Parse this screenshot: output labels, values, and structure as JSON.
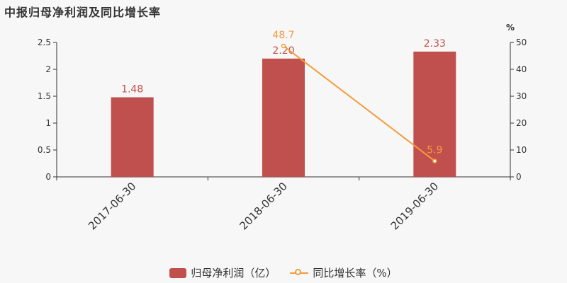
{
  "title": "中报归母净利润及同比增长率",
  "colors": {
    "bar": "#c0504d",
    "line": "#f39c3c",
    "axis": "#333333",
    "text": "#333333"
  },
  "chart_data": {
    "type": "bar",
    "categories": [
      "2017-06-30",
      "2018-06-30",
      "2019-06-30"
    ],
    "series": [
      {
        "name": "归母净利润（亿）",
        "type": "bar",
        "axis": "left",
        "values": [
          1.48,
          2.2,
          2.33
        ],
        "labels": [
          "1.48",
          "2.20",
          "2.33"
        ]
      },
      {
        "name": "同比增长率（%）",
        "type": "line",
        "axis": "right",
        "values": [
          null,
          48.7,
          5.9
        ],
        "labels": [
          "",
          "48.7",
          "5.9"
        ]
      }
    ],
    "y_left": {
      "min": 0,
      "max": 2.5,
      "ticks": [
        "0",
        "0.5",
        "1",
        "1.5",
        "2",
        "2.5"
      ]
    },
    "y_right": {
      "min": 0,
      "max": 50,
      "unit": "%",
      "ticks": [
        "0",
        "10",
        "20",
        "30",
        "40",
        "50"
      ]
    },
    "grid": false,
    "legend_position": "bottom-center"
  }
}
